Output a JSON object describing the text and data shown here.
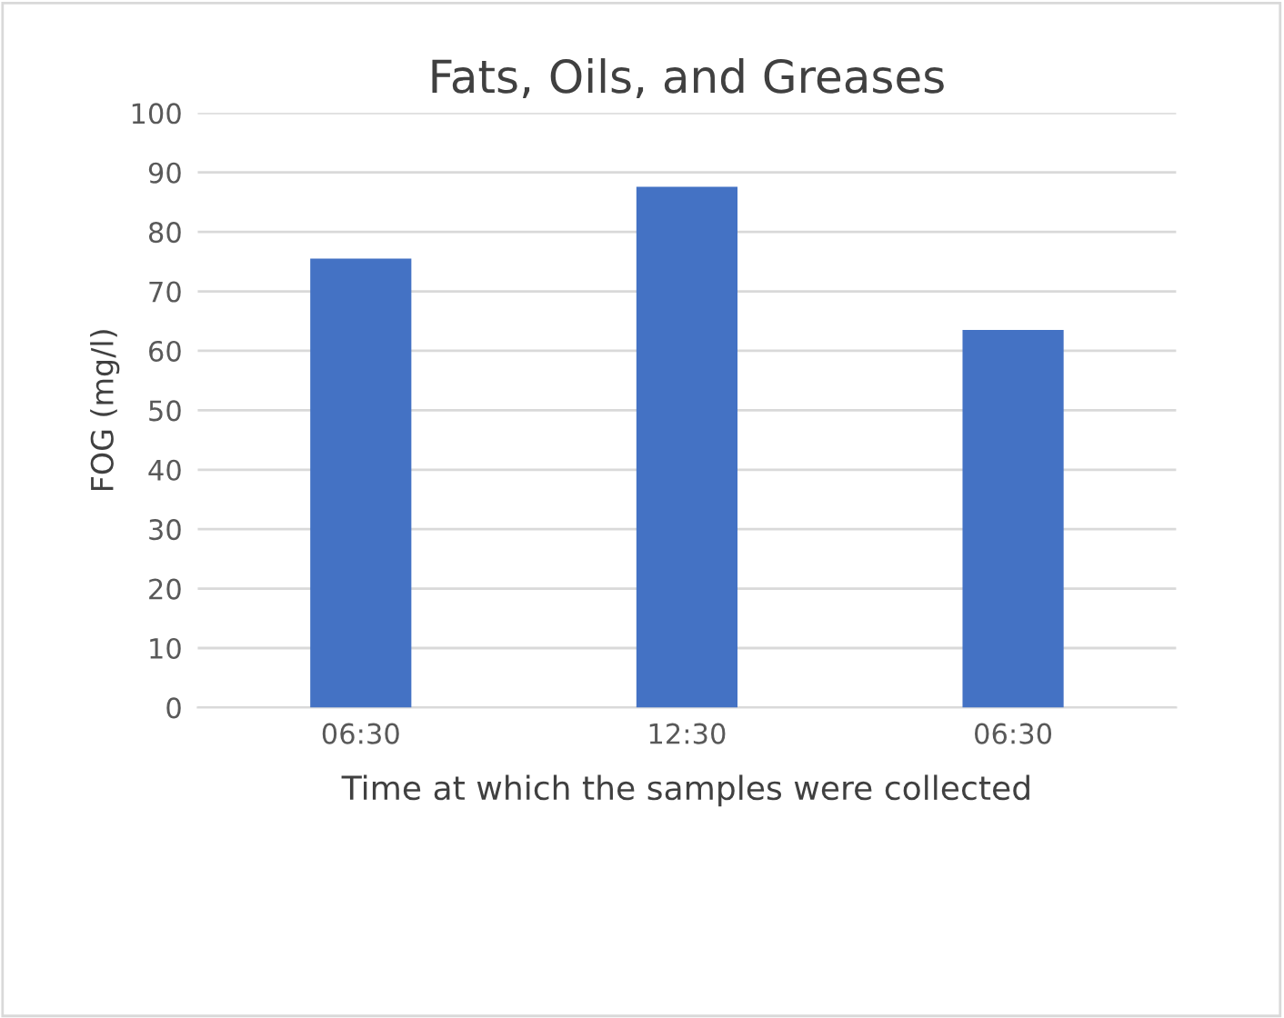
{
  "chart_data": {
    "type": "bar",
    "title": "Fats, Oils, and Greases",
    "xlabel": "Time at which the samples were collected",
    "ylabel": "FOG (mg/l)",
    "categories": [
      "06:30",
      "12:30",
      "06:30"
    ],
    "values": [
      75.5,
      87.6,
      63.5
    ],
    "color": "#4472c4",
    "ylim": [
      0,
      100
    ],
    "yticks": [
      0,
      10,
      20,
      30,
      40,
      50,
      60,
      70,
      80,
      90,
      100
    ],
    "grid": "y",
    "legend": false
  }
}
